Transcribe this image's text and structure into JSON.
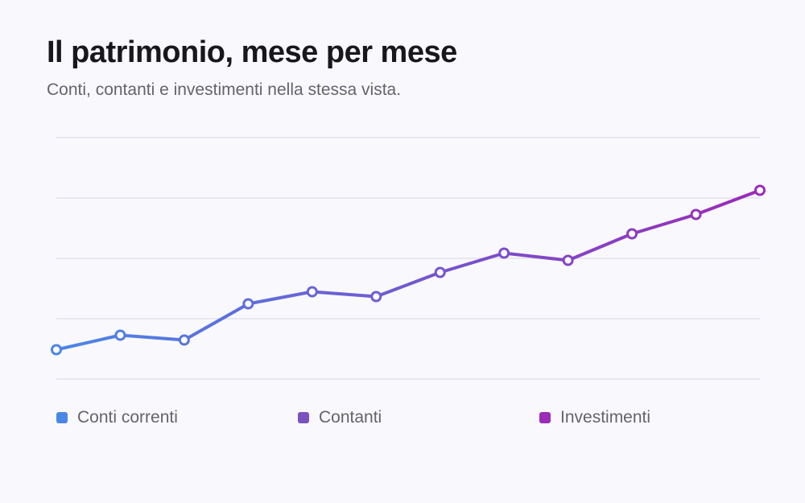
{
  "header": {
    "title": "Il patrimonio, mese per mese",
    "subtitle": "Conti, contanti e investimenti nella stessa vista."
  },
  "colors": {
    "background": "#f9f9fd",
    "gridline": "#e2e1ec",
    "line_start": "#4a86e8",
    "line_end": "#9b2bb8",
    "marker_fill": "#ffffff"
  },
  "chart_data": {
    "type": "line",
    "title": "Il patrimonio, mese per mese",
    "subtitle": "Conti, contanti e investimenti nella stessa vista.",
    "xlabel": "",
    "ylabel": "",
    "x": [
      1,
      2,
      3,
      4,
      5,
      6,
      7,
      8,
      9,
      10,
      11,
      12
    ],
    "values": [
      0.73,
      1.09,
      0.97,
      1.87,
      2.17,
      2.05,
      2.65,
      3.13,
      2.95,
      3.61,
      4.09,
      4.69
    ],
    "ylim": [
      0,
      6
    ],
    "grid": true,
    "grid_lines": 5,
    "tick_labels_shown": false,
    "legend_position": "bottom",
    "legend": [
      {
        "label": "Conti correnti",
        "color": "#4a86e8"
      },
      {
        "label": "Contanti",
        "color": "#7a53bf"
      },
      {
        "label": "Investimenti",
        "color": "#9b2bb8"
      }
    ]
  }
}
